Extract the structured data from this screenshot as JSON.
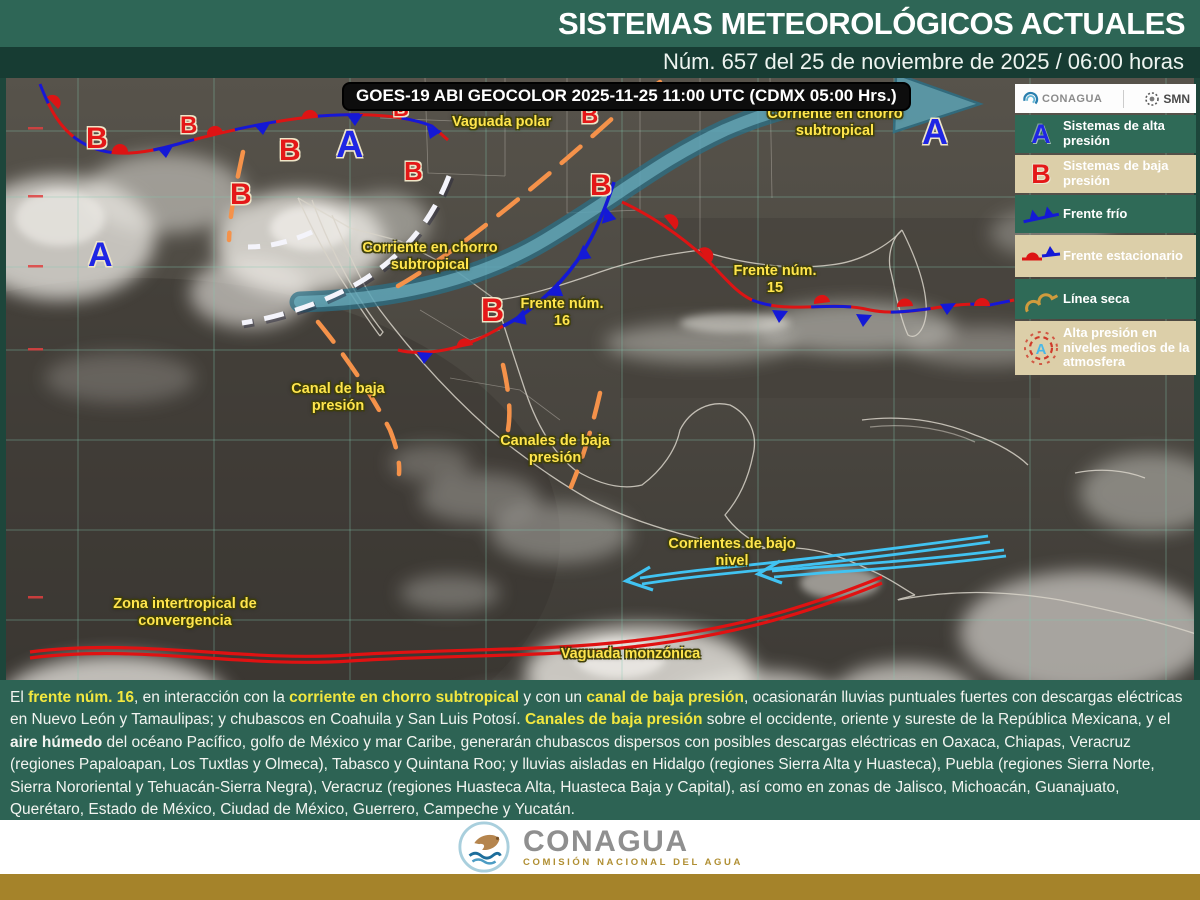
{
  "header": {
    "title": "SISTEMAS METEOROLÓGICOS ACTUALES",
    "subtitle": "Núm. 657 del 25 de noviembre de 2025 / 06:00 horas"
  },
  "map": {
    "caption": "GOES-19 ABI GEOCOLOR 2025-11-25 11:00 UTC (CDMX 05:00 Hrs.)",
    "labels": [
      {
        "id": "vaguada-polar",
        "text": "Vaguada polar"
      },
      {
        "id": "chorro-subtropical-ne",
        "text": "Corriente en chorro subtropical"
      },
      {
        "id": "chorro-subtropical-centro",
        "text": "Corriente en chorro subtropical"
      },
      {
        "id": "frente-16",
        "text": "Frente núm. 16"
      },
      {
        "id": "frente-15",
        "text": "Frente núm. 15"
      },
      {
        "id": "canal-baja-presion",
        "text": "Canal de baja presión"
      },
      {
        "id": "canales-baja-presion",
        "text": "Canales de baja presión"
      },
      {
        "id": "corrientes-bajo-nivel",
        "text": "Corrientes de bajo nivel"
      },
      {
        "id": "zona-intertropical",
        "text": "Zona intertropical de convergencia"
      },
      {
        "id": "vaguada-monzonica",
        "text": "Vaguada monzónica"
      }
    ],
    "markers": [
      {
        "letter": "A",
        "type": "high"
      },
      {
        "letter": "A",
        "type": "high"
      },
      {
        "letter": "A",
        "type": "high"
      },
      {
        "letter": "B",
        "type": "low"
      },
      {
        "letter": "B",
        "type": "low"
      },
      {
        "letter": "B",
        "type": "low"
      },
      {
        "letter": "B",
        "type": "low"
      },
      {
        "letter": "B",
        "type": "low"
      },
      {
        "letter": "B",
        "type": "low"
      },
      {
        "letter": "B",
        "type": "low"
      },
      {
        "letter": "B",
        "type": "low"
      },
      {
        "letter": "B",
        "type": "low"
      }
    ]
  },
  "legend": {
    "org1": "CONAGUA",
    "org2": "SMN",
    "items": [
      {
        "symbol": "high-pressure-letter",
        "label": "Sistemas de alta presión"
      },
      {
        "symbol": "low-pressure-letter",
        "label": "Sistemas de baja presión"
      },
      {
        "symbol": "cold-front",
        "label": "Frente frío"
      },
      {
        "symbol": "stationary-front",
        "label": "Frente estacionario"
      },
      {
        "symbol": "dry-line",
        "label": "Línea seca"
      },
      {
        "symbol": "mid-level-high",
        "label": "Alta presión en niveles medios de la atmosfera"
      }
    ]
  },
  "forecast": {
    "segments": [
      {
        "style": "n",
        "text": "El "
      },
      {
        "style": "yb",
        "text": "frente núm. 16"
      },
      {
        "style": "n",
        "text": ", en interacción con la "
      },
      {
        "style": "yb",
        "text": "corriente en chorro subtropical"
      },
      {
        "style": "n",
        "text": " y con un "
      },
      {
        "style": "yb",
        "text": "canal de baja presión"
      },
      {
        "style": "n",
        "text": ", ocasionarán lluvias puntuales fuertes con descargas eléctricas en Nuevo León y Tamaulipas; y chubascos en Coahuila y San Luis Potosí. "
      },
      {
        "style": "yb",
        "text": "Canales de baja presión"
      },
      {
        "style": "n",
        "text": " sobre el occidente, oriente y sureste de la República Mexicana, y el "
      },
      {
        "style": "wb",
        "text": "aire húmedo"
      },
      {
        "style": "n",
        "text": " del océano Pacífico, golfo de México y mar Caribe, generarán chubascos dispersos con posibles descargas eléctricas en Oaxaca, Chiapas, Veracruz (regiones Papaloapan, Los Tuxtlas y Olmeca), Tabasco y Quintana Roo; y lluvias aisladas en Hidalgo (regiones Sierra Alta y Huasteca), Puebla (regiones Sierra Norte, Sierra Nororiental y Tehuacán-Sierra Negra), Veracruz (regiones Huasteca Alta, Huasteca Baja y Capital), así como en zonas de Jalisco, Michoacán, Guanajuato, Querétaro, Estado de México, Ciudad de México, Guerrero, Campeche y Yucatán."
      }
    ]
  },
  "footer": {
    "org": "CONAGUA",
    "org_sub": "COMISIÓN NACIONAL DEL AGUA"
  },
  "colors": {
    "header_green": "#2e6656",
    "subheader_green": "#173c33",
    "panel_tan": "#dccfa9",
    "label_yellow": "#ffe54d",
    "highlight_yellow": "#f2e73f",
    "gold_bar": "#a5832a",
    "high_pressure_blue": "#1f26e4",
    "low_pressure_red": "#e41818",
    "cold_front_blue": "#1419d6",
    "front_red": "#dd1414",
    "jet_teal": "#5ca6b8",
    "channel_orange": "#f5924a",
    "current_cyan": "#41c3f2"
  }
}
